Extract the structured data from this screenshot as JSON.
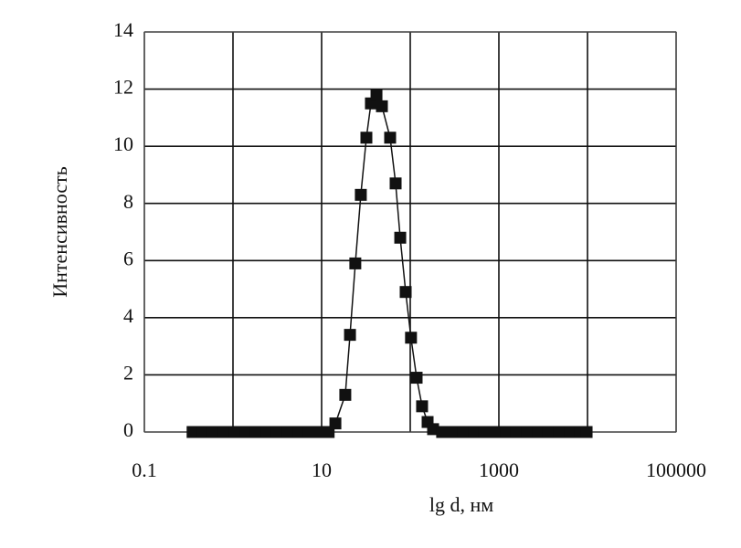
{
  "chart_data": {
    "type": "line",
    "x_label": "lg d, нм",
    "y_label": "Интенсивность",
    "x_log": true,
    "grid": true,
    "marker": "square",
    "color": "#111111",
    "xlim": [
      0.1,
      100000
    ],
    "ylim": [
      0,
      14
    ],
    "xticks": [
      0.1,
      {
        "value": 1,
        "label": null
      },
      10,
      {
        "value": 100,
        "label": null
      },
      1000,
      {
        "value": 10000,
        "label": null
      },
      100000
    ],
    "yticks": [
      0,
      2,
      4,
      6,
      8,
      10,
      12,
      14
    ],
    "x": [
      0.35,
      0.46,
      0.6,
      0.79,
      1.05,
      1.38,
      1.82,
      2.4,
      3.16,
      4.17,
      5.5,
      7.24,
      9.55,
      12.0,
      14.3,
      18.5,
      20.9,
      24.0,
      27.7,
      32.0,
      36.0,
      41.6,
      47.9,
      59.3,
      68.4,
      77.1,
      88.8,
      102,
      118,
      136,
      157,
      181,
      229,
      302,
      398,
      525,
      692,
      912,
      1202,
      1585,
      2089,
      2754,
      3631,
      4786,
      6310,
      8318,
      9772
    ],
    "values": [
      0,
      0,
      0,
      0,
      0,
      0,
      0,
      0,
      0,
      0,
      0,
      0,
      0,
      0,
      0.3,
      1.3,
      3.4,
      5.9,
      8.3,
      10.3,
      11.5,
      11.8,
      11.4,
      10.3,
      8.7,
      6.8,
      4.9,
      3.3,
      1.9,
      0.9,
      0.35,
      0.1,
      0,
      0,
      0,
      0,
      0,
      0,
      0,
      0,
      0,
      0,
      0,
      0,
      0,
      0,
      0
    ]
  }
}
